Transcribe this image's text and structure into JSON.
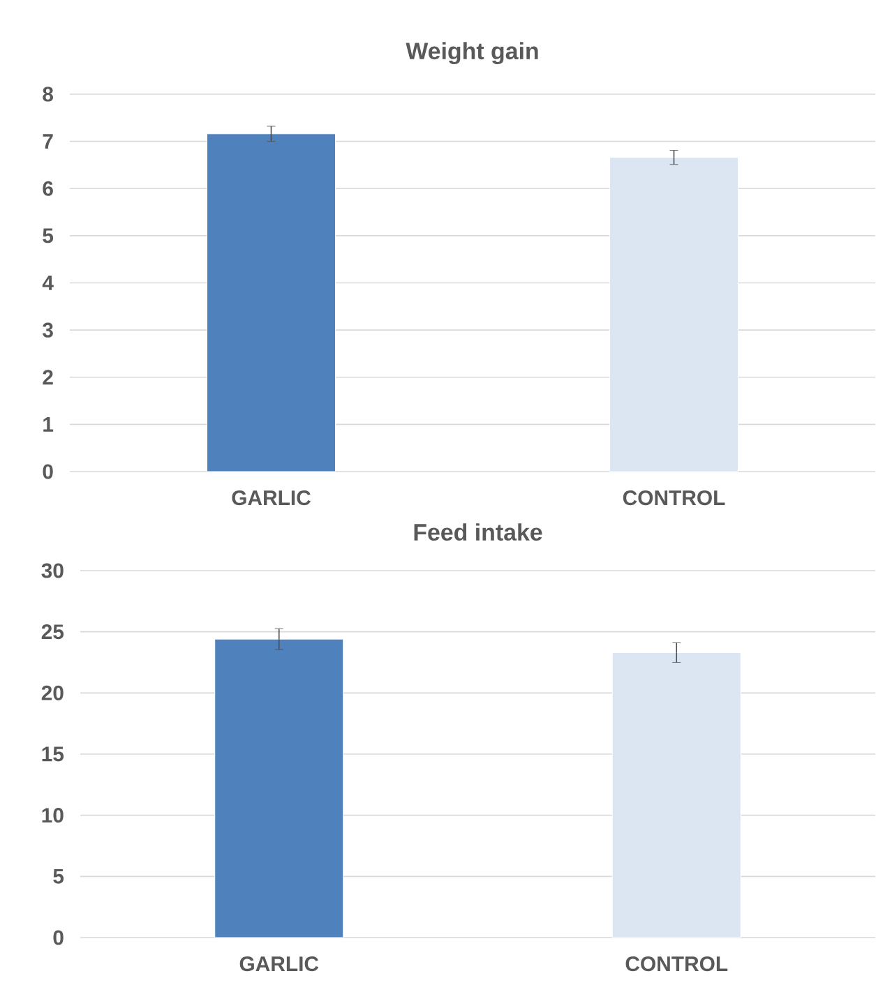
{
  "chart_data": [
    {
      "type": "bar",
      "title": "Weight gain",
      "categories": [
        "GARLIC",
        "CONTROL"
      ],
      "values": [
        7.16,
        6.66
      ],
      "errors": [
        0.16,
        0.15
      ],
      "colors": [
        "#4f81bd",
        "#dce6f2"
      ],
      "ylim": [
        0,
        8
      ],
      "yticks": [
        0,
        1,
        2,
        3,
        4,
        5,
        6,
        7,
        8
      ],
      "grid": "y"
    },
    {
      "type": "bar",
      "title": "Feed intake",
      "categories": [
        "GARLIC",
        "CONTROL"
      ],
      "values": [
        24.4,
        23.3
      ],
      "errors": [
        0.85,
        0.8
      ],
      "colors": [
        "#4f81bd",
        "#dce6f2"
      ],
      "ylim": [
        0,
        30
      ],
      "yticks": [
        0,
        5,
        10,
        15,
        20,
        25,
        30
      ],
      "grid": "y"
    }
  ]
}
